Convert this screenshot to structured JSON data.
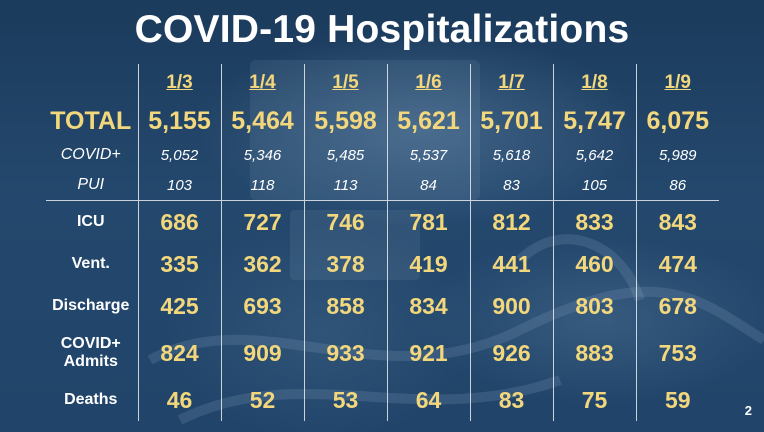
{
  "title": "COVID-19 Hospitalizations",
  "page_number": "2",
  "chart_data": {
    "type": "table",
    "title": "COVID-19 Hospitalizations",
    "columns": [
      "1/3",
      "1/4",
      "1/5",
      "1/6",
      "1/7",
      "1/8",
      "1/9"
    ],
    "rows": [
      {
        "label": "TOTAL",
        "style": "total",
        "values": [
          "5,155",
          "5,464",
          "5,598",
          "5,621",
          "5,701",
          "5,747",
          "6,075"
        ]
      },
      {
        "label": "COVID+",
        "style": "small",
        "values": [
          "5,052",
          "5,346",
          "5,485",
          "5,537",
          "5,618",
          "5,642",
          "5,989"
        ]
      },
      {
        "label": "PUI",
        "style": "small",
        "values": [
          "103",
          "118",
          "113",
          "84",
          "83",
          "105",
          "86"
        ]
      },
      {
        "label": "ICU",
        "style": "big",
        "values": [
          "686",
          "727",
          "746",
          "781",
          "812",
          "833",
          "843"
        ]
      },
      {
        "label": "Vent.",
        "style": "big",
        "values": [
          "335",
          "362",
          "378",
          "419",
          "441",
          "460",
          "474"
        ]
      },
      {
        "label": "Discharge",
        "style": "big",
        "values": [
          "425",
          "693",
          "858",
          "834",
          "900",
          "803",
          "678"
        ]
      },
      {
        "label_lines": [
          "COVID+",
          "Admits"
        ],
        "style": "big",
        "values": [
          "824",
          "909",
          "933",
          "921",
          "926",
          "883",
          "753"
        ]
      },
      {
        "label": "Deaths",
        "style": "big",
        "values": [
          "46",
          "52",
          "53",
          "64",
          "83",
          "75",
          "59"
        ]
      }
    ]
  },
  "colors": {
    "background": "#1e3f60",
    "value_gold": "#f3d77c",
    "text_white": "#ffffff",
    "rule": "#ebebeb"
  }
}
